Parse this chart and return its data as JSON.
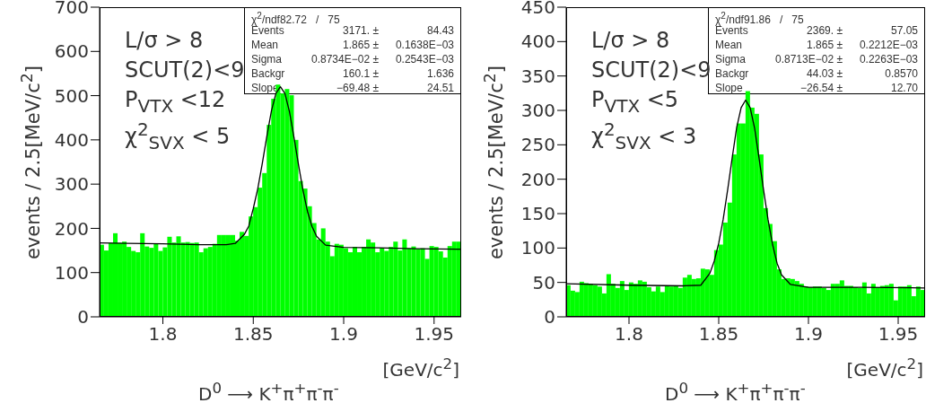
{
  "chart_data": [
    {
      "type": "histogram",
      "title": "D$^{0}$ ⟶ K$^{+}$π$^{+}$π$^{-}$π$^{-}$",
      "xlabel": "[GeV/c$^{2}$]",
      "ylabel": "events / 2.5[MeV/c$^{2}$]",
      "annotations": [
        "L/σ > 8",
        "SCUT(2)<9",
        "P$_{VTX}$ <12",
        "χ$^{2}$$_{SVX}$ < 5",
        "χ$^{2}$/ndf82.72   /   75",
        "Events 3171. ± 84.43",
        "Mean 1.865 ± 0.1638E−03",
        "Sigma 0.8734E−02 ± 0.2543E−03",
        "Backgr 160.1 ± 1.636",
        "Slope −69.48 ± 24.51"
      ],
      "xlim": [
        1.765,
        1.965
      ],
      "xticks": [
        1.8,
        1.85,
        1.9,
        1.95
      ],
      "ylim": [
        0,
        700
      ],
      "yticks": [
        0,
        100,
        200,
        300,
        400,
        500,
        600,
        700
      ],
      "bins": [
        1.765,
        1.7675,
        1.77,
        1.7725,
        1.775,
        1.7775,
        1.78,
        1.7825,
        1.785,
        1.7875,
        1.79,
        1.7925,
        1.795,
        1.7975,
        1.8,
        1.8025,
        1.805,
        1.8075,
        1.81,
        1.8125,
        1.815,
        1.8175,
        1.82,
        1.8225,
        1.825,
        1.8275,
        1.83,
        1.8325,
        1.835,
        1.8375,
        1.84,
        1.8425,
        1.845,
        1.8475,
        1.85,
        1.8525,
        1.855,
        1.8575,
        1.86,
        1.8625,
        1.865,
        1.8675,
        1.87,
        1.8725,
        1.875,
        1.8775,
        1.88,
        1.8825,
        1.885,
        1.8875,
        1.89,
        1.8925,
        1.895,
        1.8975,
        1.9,
        1.9025,
        1.905,
        1.9075,
        1.91,
        1.9125,
        1.915,
        1.9175,
        1.92,
        1.9225,
        1.925,
        1.9275,
        1.93,
        1.9325,
        1.935,
        1.9375,
        1.94,
        1.9425,
        1.945,
        1.9475,
        1.95,
        1.9525,
        1.955,
        1.9575,
        1.96,
        1.9625,
        1.965
      ],
      "series": [
        {
          "type": "histogram",
          "color": "#00ff00",
          "values": [
            163,
            150,
            167,
            189,
            167,
            170,
            158,
            149,
            146,
            189,
            159,
            156,
            165,
            149,
            157,
            181,
            168,
            182,
            168,
            169,
            167,
            168,
            146,
            155,
            158,
            165,
            185,
            185,
            185,
            185,
            172,
            192,
            183,
            227,
            248,
            292,
            325,
            434,
            493,
            525,
            505,
            515,
            501,
            400,
            307,
            290,
            250,
            212,
            175,
            200,
            170,
            137,
            165,
            163,
            155,
            146,
            158,
            146,
            158,
            175,
            168,
            146,
            156,
            149,
            158,
            170,
            150,
            175,
            155,
            159,
            153,
            155,
            131,
            160,
            158,
            148,
            134,
            160,
            170,
            170
          ]
        },
        {
          "type": "line",
          "color": "#000000",
          "x": [
            1.765,
            1.78,
            1.8,
            1.82,
            1.835,
            1.84,
            1.845,
            1.8475,
            1.85,
            1.8525,
            1.855,
            1.8575,
            1.86,
            1.8625,
            1.865,
            1.8675,
            1.87,
            1.8725,
            1.875,
            1.8775,
            1.88,
            1.8825,
            1.885,
            1.89,
            1.9,
            1.92,
            1.94,
            1.965
          ],
          "values": [
            167,
            166,
            165,
            163,
            163,
            166,
            186,
            205,
            245,
            290,
            347,
            408,
            465,
            505,
            520,
            505,
            464,
            406,
            344,
            286,
            238,
            204,
            182,
            162,
            157,
            156,
            154,
            153
          ]
        }
      ]
    },
    {
      "type": "histogram",
      "title": "D$^{0}$ ⟶ K$^{+}$π$^{+}$π$^{-}$π$^{-}$",
      "xlabel": "[GeV/c$^{2}$]",
      "ylabel": "events / 2.5[MeV/c$^{2}$]",
      "annotations": [
        "L/σ > 8",
        "SCUT(2)<9",
        "P$_{VTX}$ <5",
        "χ$^{2}$$_{SVX}$ < 3",
        "χ$^{2}$/ndf91.86   /   75",
        "Events 2369. ± 57.05",
        "Mean 1.865 ± 0.2212E−03",
        "Sigma 0.8713E−02 ± 0.2263E−03",
        "Backgr 44.03 ± 0.8570",
        "Slope −26.54 ± 12.70"
      ],
      "xlim": [
        1.765,
        1.965
      ],
      "xticks": [
        1.8,
        1.85,
        1.9,
        1.95
      ],
      "ylim": [
        0,
        450
      ],
      "yticks": [
        0,
        50,
        100,
        150,
        200,
        250,
        300,
        350,
        400,
        450
      ],
      "bins": [
        1.765,
        1.7675,
        1.77,
        1.7725,
        1.775,
        1.7775,
        1.78,
        1.7825,
        1.785,
        1.7875,
        1.79,
        1.7925,
        1.795,
        1.7975,
        1.8,
        1.8025,
        1.805,
        1.8075,
        1.81,
        1.8125,
        1.815,
        1.8175,
        1.82,
        1.8225,
        1.825,
        1.8275,
        1.83,
        1.8325,
        1.835,
        1.8375,
        1.84,
        1.8425,
        1.845,
        1.8475,
        1.85,
        1.8525,
        1.855,
        1.8575,
        1.86,
        1.8625,
        1.865,
        1.8675,
        1.87,
        1.8725,
        1.875,
        1.8775,
        1.88,
        1.8825,
        1.885,
        1.8875,
        1.89,
        1.8925,
        1.895,
        1.8975,
        1.9,
        1.9025,
        1.905,
        1.9075,
        1.91,
        1.9125,
        1.915,
        1.9175,
        1.92,
        1.9225,
        1.925,
        1.9275,
        1.93,
        1.9325,
        1.935,
        1.9375,
        1.94,
        1.9425,
        1.945,
        1.9475,
        1.95,
        1.9525,
        1.955,
        1.9575,
        1.96,
        1.9625,
        1.965
      ],
      "series": [
        {
          "type": "histogram",
          "color": "#00ff00",
          "values": [
            46,
            38,
            36,
            51,
            49,
            48,
            46,
            44,
            34,
            62,
            48,
            42,
            52,
            39,
            50,
            48,
            53,
            51,
            43,
            37,
            44,
            36,
            45,
            44,
            45,
            42,
            57,
            61,
            55,
            56,
            70,
            69,
            61,
            97,
            105,
            137,
            166,
            236,
            281,
            281,
            328,
            304,
            295,
            236,
            158,
            135,
            110,
            69,
            55,
            56,
            55,
            52,
            48,
            44,
            43,
            44,
            44,
            42,
            39,
            48,
            48,
            53,
            45,
            45,
            43,
            42,
            50,
            34,
            48,
            43,
            45,
            46,
            48,
            24,
            44,
            44,
            46,
            30,
            44,
            39
          ]
        },
        {
          "type": "line",
          "color": "#000000",
          "x": [
            1.765,
            1.8,
            1.83,
            1.84,
            1.845,
            1.8475,
            1.85,
            1.8525,
            1.855,
            1.8575,
            1.86,
            1.8625,
            1.865,
            1.8675,
            1.87,
            1.8725,
            1.875,
            1.8775,
            1.88,
            1.8825,
            1.885,
            1.89,
            1.9,
            1.93,
            1.965
          ],
          "values": [
            48,
            46,
            45,
            46,
            63,
            81,
            107,
            142,
            185,
            231,
            275,
            304,
            315,
            304,
            274,
            230,
            184,
            141,
            105,
            78,
            61,
            47,
            43,
            43,
            42
          ]
        }
      ]
    }
  ]
}
